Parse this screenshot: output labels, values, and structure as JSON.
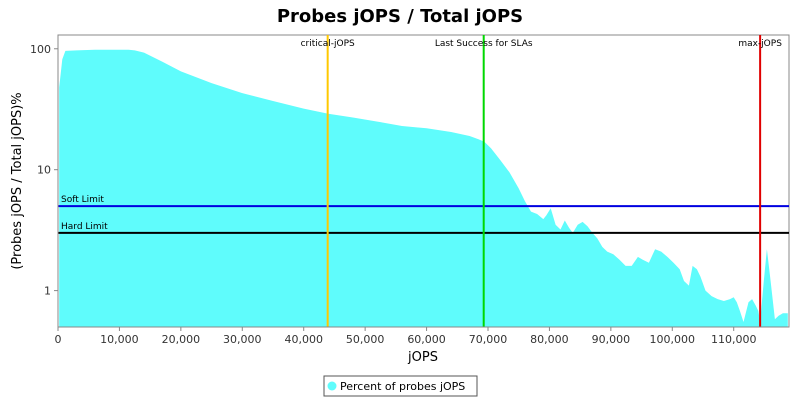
{
  "chart_data": {
    "type": "area",
    "title": "Probes jOPS / Total jOPS",
    "xlabel": "jOPS",
    "ylabel": "(Probes jOPS / Total jOPS)%",
    "xlim": [
      0,
      119000
    ],
    "ylim": [
      0.5,
      130
    ],
    "y_scale": "log",
    "grid": false,
    "legend_position": "bottom",
    "x_ticks": [
      0,
      10000,
      20000,
      30000,
      40000,
      50000,
      60000,
      70000,
      80000,
      90000,
      100000,
      110000
    ],
    "x_tick_labels": [
      "0",
      "10,000",
      "20,000",
      "30,000",
      "40,000",
      "50,000",
      "60,000",
      "70,000",
      "80,000",
      "90,000",
      "100,000",
      "110,000"
    ],
    "y_ticks": [
      1,
      10,
      100
    ],
    "y_tick_labels": [
      "1",
      "10",
      "100"
    ],
    "series": [
      {
        "name": "Percent of probes jOPS",
        "color": "#5ffcfc",
        "x": [
          200,
          700,
          1200,
          3000,
          6000,
          9000,
          11500,
          12500,
          14000,
          17000,
          20000,
          25000,
          30000,
          35000,
          40000,
          44000,
          48000,
          52000,
          56000,
          60000,
          64000,
          67000,
          68500,
          69400,
          70500,
          72000,
          73500,
          75000,
          76000,
          77000,
          78000,
          79000,
          79500,
          80200,
          81000,
          81800,
          82500,
          83200,
          83800,
          84600,
          85400,
          86200,
          87000,
          87800,
          88600,
          89400,
          90400,
          91400,
          92400,
          93400,
          94400,
          95200,
          96200,
          97200,
          98200,
          99200,
          100200,
          101200,
          101900,
          102700,
          103300,
          104000,
          104600,
          105400,
          106400,
          107400,
          108400,
          109400,
          110000,
          110500,
          111000,
          111600,
          112400,
          113000,
          113600,
          114000,
          114300,
          114900,
          115400,
          116000,
          116700,
          117300,
          118000,
          118800
        ],
        "values": [
          48,
          82,
          96,
          97,
          98,
          98,
          98,
          97,
          93,
          78,
          65,
          52,
          43,
          37,
          32,
          29,
          27,
          25,
          23,
          22,
          20.5,
          19,
          17.8,
          17,
          15,
          12,
          9.5,
          7,
          5.5,
          4.5,
          4.3,
          3.9,
          4.2,
          4.8,
          3.5,
          3.2,
          3.8,
          3.3,
          3.0,
          3.5,
          3.7,
          3.4,
          3.0,
          2.7,
          2.3,
          2.1,
          2.0,
          1.8,
          1.6,
          1.6,
          1.9,
          1.8,
          1.7,
          2.2,
          2.1,
          1.9,
          1.7,
          1.5,
          1.2,
          1.1,
          1.6,
          1.5,
          1.3,
          1.0,
          0.9,
          0.85,
          0.82,
          0.85,
          0.88,
          0.8,
          0.68,
          0.55,
          0.8,
          0.85,
          0.75,
          0.68,
          0.55,
          1.2,
          2.2,
          1.2,
          0.58,
          0.62,
          0.65,
          0.65
        ]
      }
    ],
    "vertical_markers": [
      {
        "label": "critical-jOPS",
        "x": 43900,
        "color": "#ffc800"
      },
      {
        "label": "Last Success for SLAs",
        "x": 69300,
        "color": "#00d800"
      },
      {
        "label": "max-jOPS",
        "x": 114300,
        "color": "#e00000"
      }
    ],
    "horizontal_markers": [
      {
        "label": "Soft Limit",
        "y": 5,
        "color": "#0000e0"
      },
      {
        "label": "Hard Limit",
        "y": 3,
        "color": "#000000"
      }
    ]
  }
}
